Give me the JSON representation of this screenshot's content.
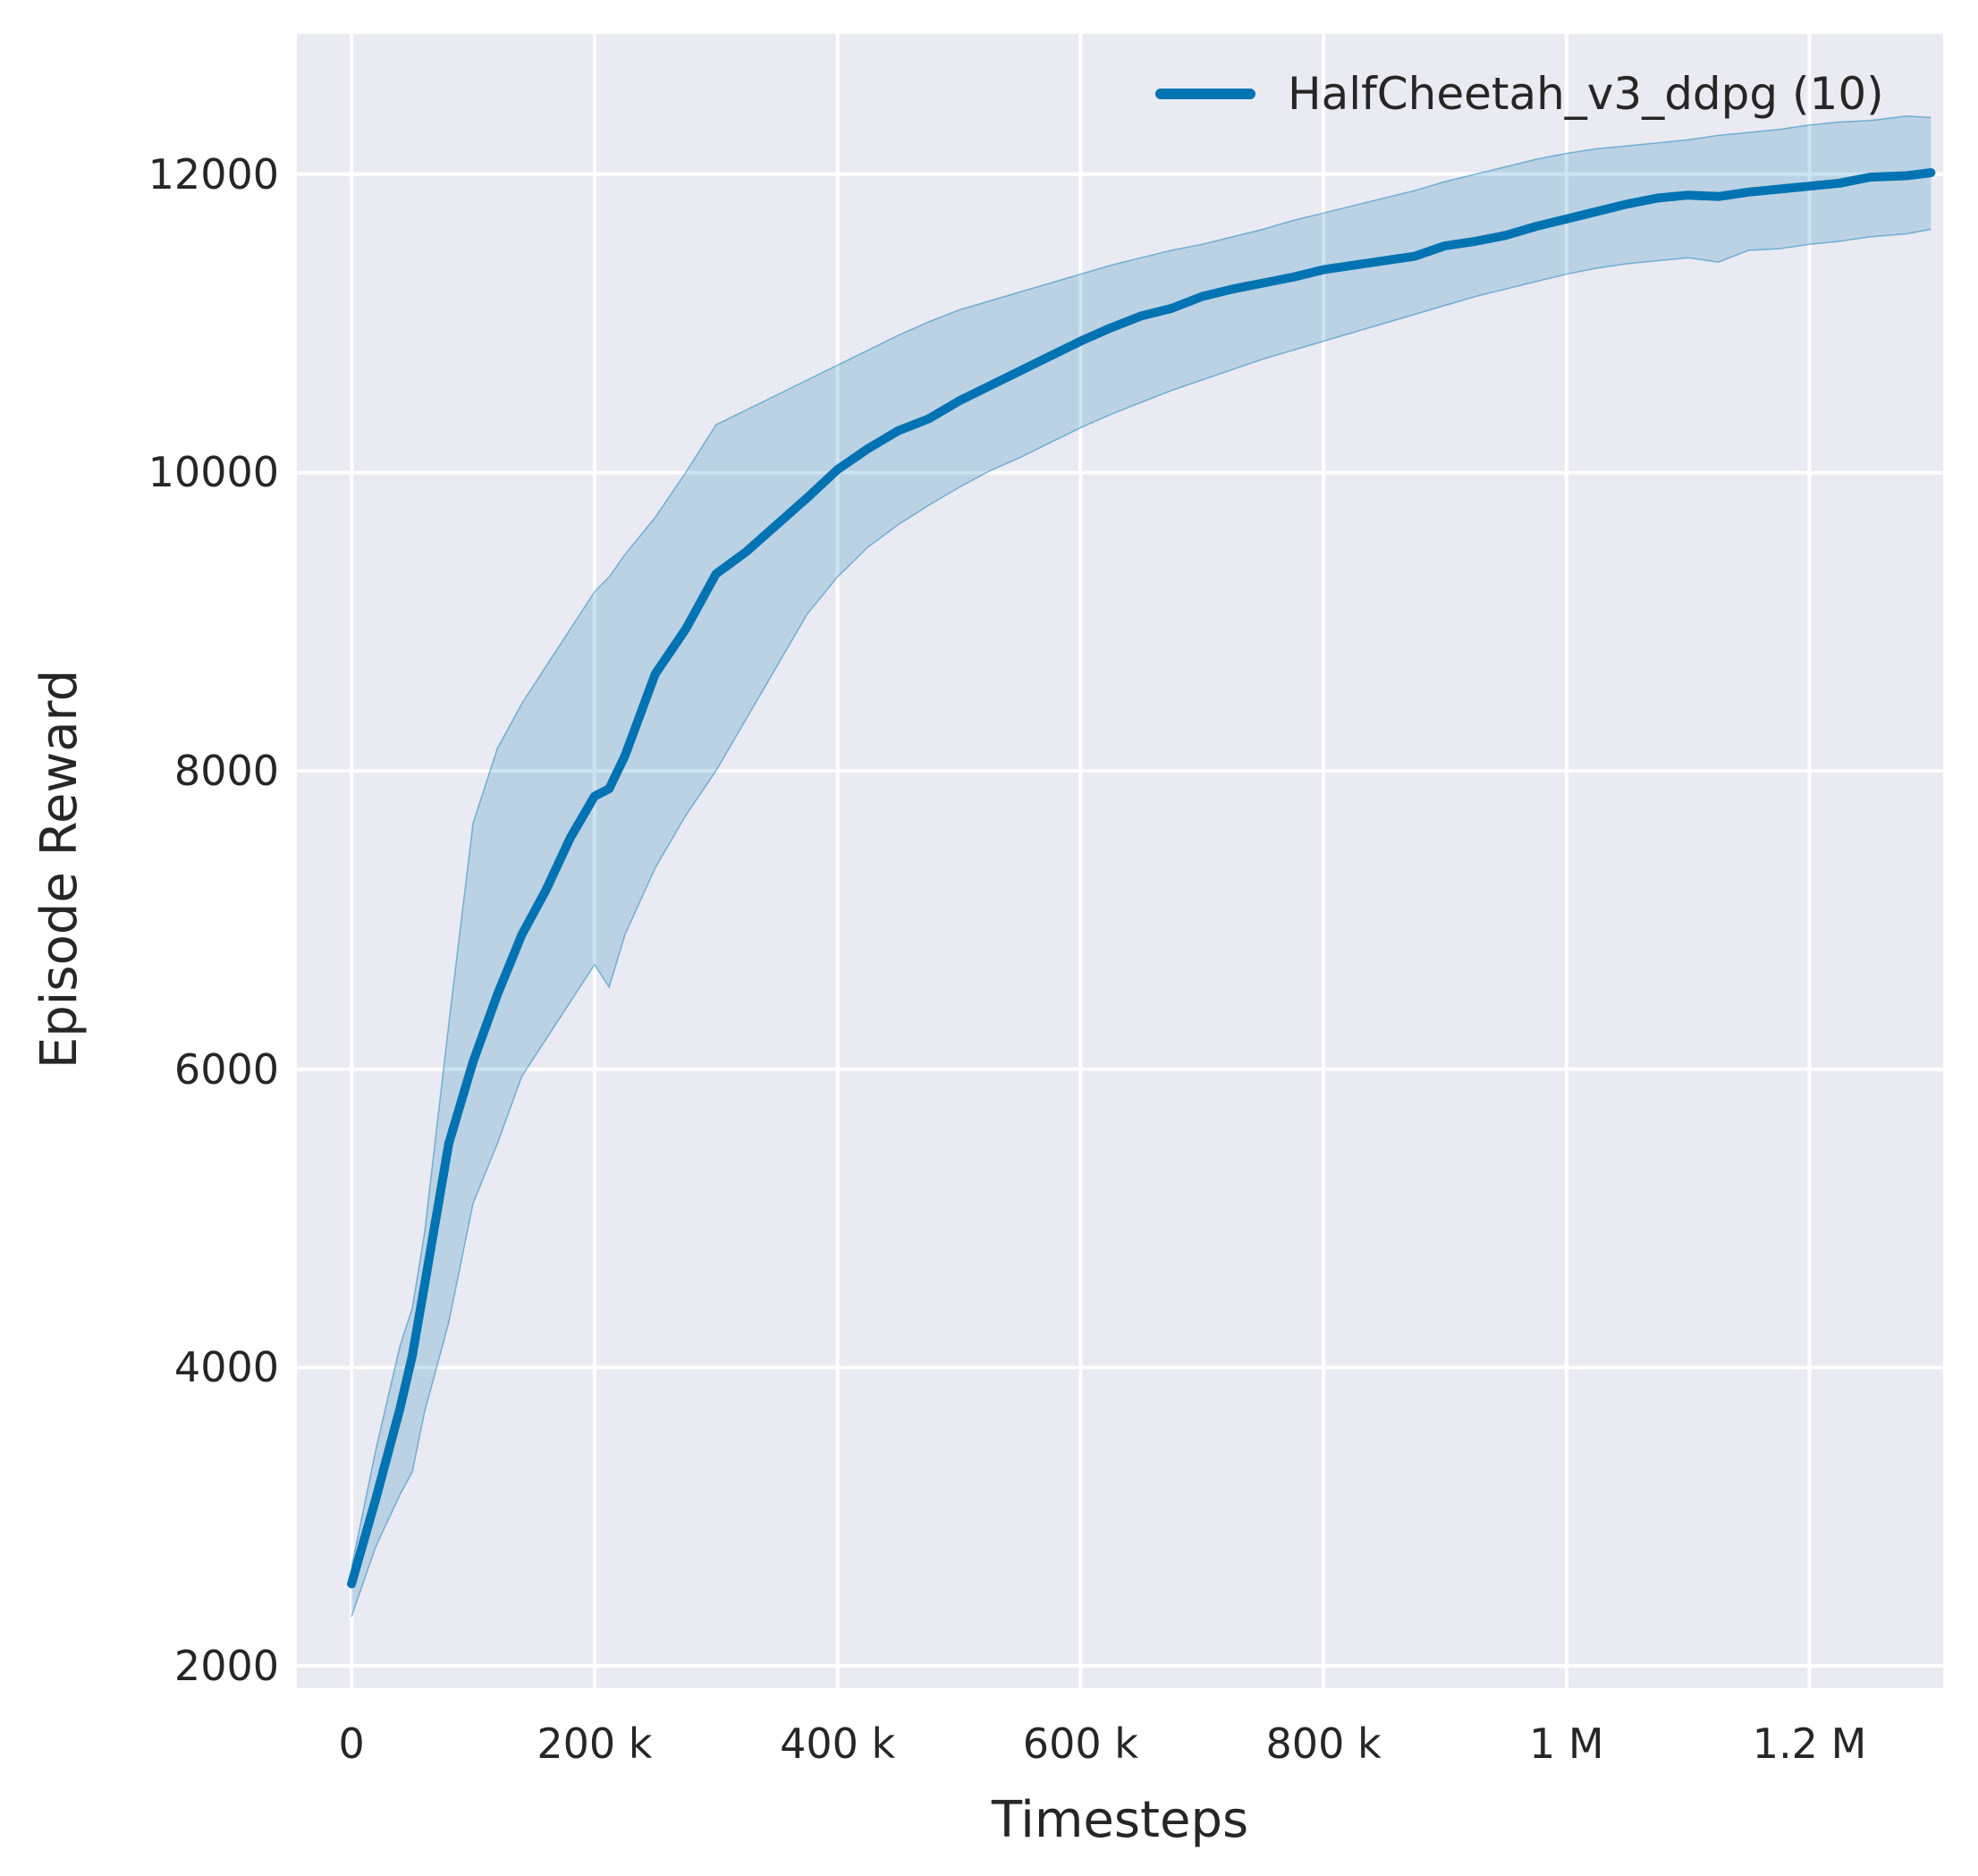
{
  "figure": {
    "background": "#ffffff",
    "plot_background": "#eaeaf2",
    "grid_color": "#ffffff",
    "text_color": "#262626"
  },
  "legend": {
    "label": "HalfCheetah_v3_ddpg (10)",
    "line_color": "#0173b2"
  },
  "chart_data": {
    "type": "line",
    "title": "",
    "xlabel": "Timesteps",
    "ylabel": "Episode Reward",
    "grid": true,
    "legend_position": "upper right",
    "xlim": [
      -45000,
      1310000
    ],
    "ylim": [
      1850,
      12940
    ],
    "x_ticks": {
      "values": [
        0,
        200000,
        400000,
        600000,
        800000,
        1000000,
        1200000
      ],
      "labels": [
        "0",
        "200 k",
        "400 k",
        "600 k",
        "800 k",
        "1 M",
        "1.2 M"
      ]
    },
    "y_ticks": {
      "values": [
        2000,
        4000,
        6000,
        8000,
        10000,
        12000
      ],
      "labels": [
        "2000",
        "4000",
        "6000",
        "8000",
        "10000",
        "12000"
      ]
    },
    "series": [
      {
        "name": "HalfCheetah_v3_ddpg (10)",
        "color": "#0173b2",
        "line_width": 10,
        "band_opacity": 0.2,
        "x": [
          0,
          20000,
          40000,
          50000,
          60000,
          80000,
          100000,
          120000,
          140000,
          160000,
          180000,
          200000,
          212000,
          225000,
          250000,
          275000,
          300000,
          325000,
          350000,
          375000,
          400000,
          425000,
          450000,
          475000,
          500000,
          525000,
          550000,
          575000,
          600000,
          625000,
          650000,
          675000,
          700000,
          725000,
          750000,
          775000,
          800000,
          825000,
          850000,
          875000,
          900000,
          925000,
          950000,
          975000,
          1000000,
          1025000,
          1050000,
          1075000,
          1100000,
          1125000,
          1150000,
          1175000,
          1200000,
          1225000,
          1250000,
          1280000,
          1300000
        ],
        "mean": [
          2550,
          3120,
          3730,
          4080,
          4550,
          5500,
          6050,
          6500,
          6900,
          7200,
          7550,
          7830,
          7880,
          8100,
          8650,
          8950,
          9320,
          9470,
          9650,
          9830,
          10020,
          10160,
          10280,
          10360,
          10480,
          10580,
          10680,
          10780,
          10880,
          10970,
          11050,
          11100,
          11180,
          11230,
          11270,
          11310,
          11360,
          11390,
          11420,
          11450,
          11520,
          11550,
          11590,
          11650,
          11700,
          11750,
          11800,
          11840,
          11860,
          11850,
          11880,
          11900,
          11920,
          11940,
          11980,
          11990,
          12010
        ],
        "lower": [
          2330,
          2800,
          3150,
          3300,
          3700,
          4300,
          5100,
          5500,
          5950,
          6200,
          6450,
          6700,
          6550,
          6900,
          7350,
          7700,
          8000,
          8350,
          8700,
          9050,
          9300,
          9500,
          9650,
          9780,
          9900,
          10010,
          10100,
          10200,
          10300,
          10390,
          10470,
          10550,
          10620,
          10690,
          10760,
          10820,
          10880,
          10940,
          11000,
          11060,
          11120,
          11180,
          11230,
          11280,
          11330,
          11370,
          11400,
          11420,
          11440,
          11410,
          11490,
          11500,
          11530,
          11550,
          11580,
          11600,
          11630
        ],
        "upper": [
          2660,
          3450,
          4150,
          4400,
          4900,
          6300,
          7650,
          8150,
          8450,
          8700,
          8950,
          9200,
          9300,
          9450,
          9700,
          10000,
          10320,
          10420,
          10520,
          10620,
          10720,
          10820,
          10920,
          11010,
          11090,
          11150,
          11210,
          11270,
          11330,
          11390,
          11440,
          11490,
          11530,
          11580,
          11630,
          11690,
          11740,
          11790,
          11840,
          11890,
          11950,
          12000,
          12050,
          12100,
          12140,
          12170,
          12190,
          12210,
          12230,
          12260,
          12280,
          12300,
          12330,
          12350,
          12360,
          12390,
          12380
        ]
      }
    ]
  }
}
